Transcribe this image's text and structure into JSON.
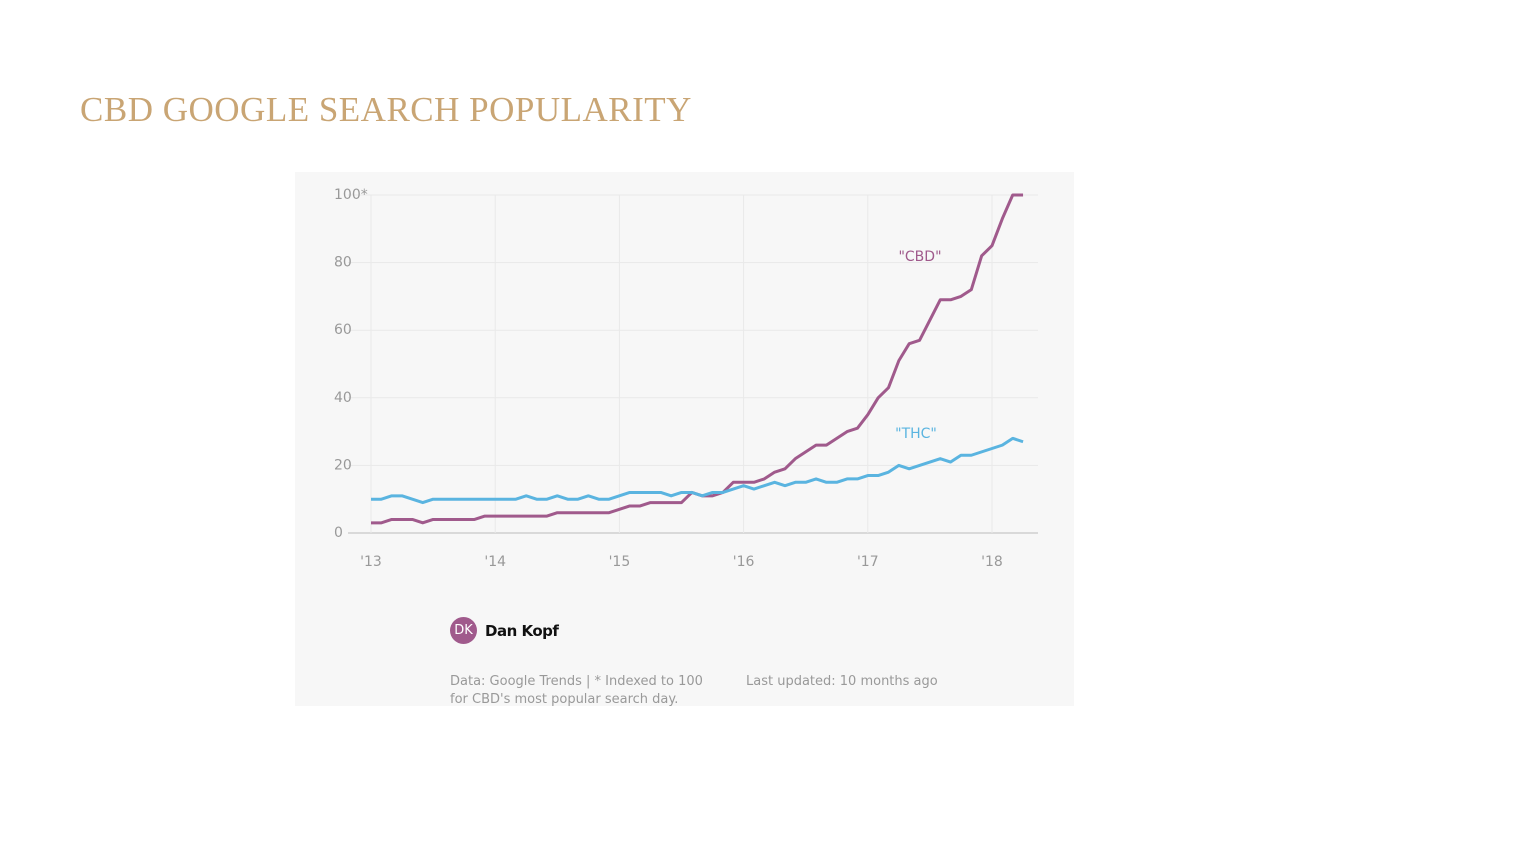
{
  "slide_title": "CBD GOOGLE SEARCH POPULARITY",
  "chart_data": {
    "type": "line",
    "categories": [
      "'13",
      null,
      null,
      null,
      null,
      null,
      null,
      null,
      null,
      null,
      null,
      null,
      "'14",
      null,
      null,
      null,
      null,
      null,
      null,
      null,
      null,
      null,
      null,
      null,
      "'15",
      null,
      null,
      null,
      null,
      null,
      null,
      null,
      null,
      null,
      null,
      null,
      "'16",
      null,
      null,
      null,
      null,
      null,
      null,
      null,
      null,
      null,
      null,
      null,
      "'17",
      null,
      null,
      null,
      null,
      null,
      null,
      null,
      null,
      null,
      null,
      null,
      "'18",
      null,
      null,
      null
    ],
    "series": [
      {
        "name": "\"CBD\"",
        "color": "#a05a8c",
        "values": [
          3,
          3,
          4,
          4,
          4,
          3,
          4,
          4,
          4,
          4,
          4,
          5,
          5,
          5,
          5,
          5,
          5,
          5,
          6,
          6,
          6,
          6,
          6,
          6,
          7,
          8,
          8,
          9,
          9,
          9,
          9,
          12,
          11,
          11,
          12,
          15,
          15,
          15,
          16,
          18,
          19,
          22,
          24,
          26,
          26,
          28,
          30,
          31,
          35,
          40,
          43,
          51,
          56,
          57,
          63,
          69,
          69,
          70,
          72,
          82,
          85,
          93,
          100,
          100
        ]
      },
      {
        "name": "\"THC\"",
        "color": "#5ab4e0",
        "values": [
          10,
          10,
          11,
          11,
          10,
          9,
          10,
          10,
          10,
          10,
          10,
          10,
          10,
          10,
          10,
          11,
          10,
          10,
          11,
          10,
          10,
          11,
          10,
          10,
          11,
          12,
          12,
          12,
          12,
          11,
          12,
          12,
          11,
          12,
          12,
          13,
          14,
          13,
          14,
          15,
          14,
          15,
          15,
          16,
          15,
          15,
          16,
          16,
          17,
          17,
          18,
          20,
          19,
          20,
          21,
          22,
          21,
          23,
          23,
          24,
          25,
          26,
          28,
          27
        ]
      }
    ],
    "ylim": [
      0,
      100
    ],
    "yticks": [
      0,
      20,
      40,
      60,
      80,
      {
        "value": 100,
        "label": "100*"
      }
    ],
    "grid": true
  },
  "byline": {
    "initials": "DK",
    "author": "Dan Kopf"
  },
  "source": "Data: Google Trends | * Indexed to 100 for CBD's most popular search day.",
  "updated": "Last updated: 10 months ago"
}
